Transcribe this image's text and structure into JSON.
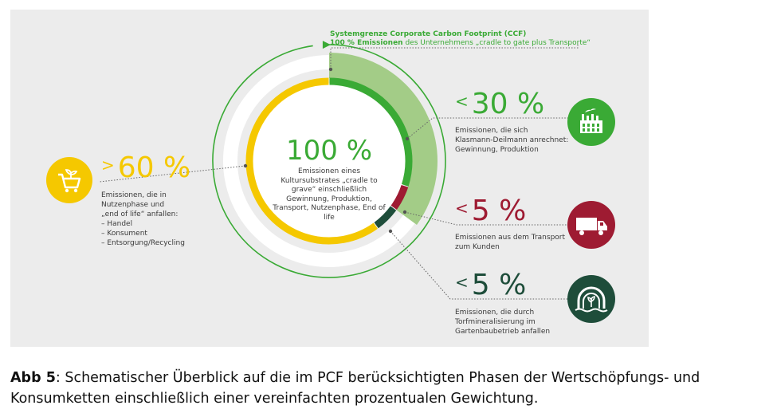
{
  "system_boundary": {
    "title": "Systemgrenze Corporate Carbon Footprint (CCF)",
    "subtitle_bold": "100 % Emissionen",
    "subtitle_rest": " des Unternehmens „cradle to gate plus Transporte“"
  },
  "center": {
    "value": "100 %",
    "description": "Emissionen eines Kultursubstrates „cradle to grave“ einschließlich Gewinnung, Produktion, Transport, Nutzenphase, End of life"
  },
  "left_item": {
    "sign": ">",
    "value": "60 %",
    "lines": [
      "Emissionen, die in",
      "Nutzenphase und",
      "„end of life“ anfallen:",
      "– Handel",
      "– Konsument",
      "– Entsorgung/Recycling"
    ],
    "icon": "shopping-cart-plant-icon",
    "color": "#f5c800"
  },
  "right_items": [
    {
      "sign": "<",
      "value": "30 %",
      "lines": [
        "Emissionen, die sich",
        "Klasmann-Deilmann anrechnet:",
        "Gewinnung, Produktion"
      ],
      "icon": "factory-icon",
      "color": "#3aaa35"
    },
    {
      "sign": "<",
      "value": "5 %",
      "lines": [
        "Emissionen aus dem Transport",
        "zum Kunden"
      ],
      "icon": "truck-icon",
      "color": "#9e1b32"
    },
    {
      "sign": "<",
      "value": "5 %",
      "lines": [
        "Emissionen, die durch",
        "Torfmineralisierung im",
        "Gartenbaubetrieb anfallen"
      ],
      "icon": "plant-tunnel-icon",
      "color": "#1e4d3a"
    }
  ],
  "chart_data": {
    "type": "pie",
    "title": "100 %",
    "categories": [
      "Nutzenphase und end of life",
      "Gewinnung, Produktion",
      "Transport zum Kunden",
      "Torfmineralisierung im Gartenbaubetrieb"
    ],
    "values": [
      60,
      30,
      5,
      5
    ],
    "labels": [
      "> 60 %",
      "< 30 %",
      "< 5 %",
      "< 5 %"
    ],
    "colors": [
      "#f5c800",
      "#3aaa35",
      "#9e1b32",
      "#1e4d3a"
    ]
  },
  "caption": {
    "bold": "Abb 5",
    "text": ": Schematischer Überblick auf die im PCF berücksichtigten Phasen der Wertschöpfungs- und Konsumketten einschließlich einer vereinfachten prozentualen Gewichtung."
  }
}
